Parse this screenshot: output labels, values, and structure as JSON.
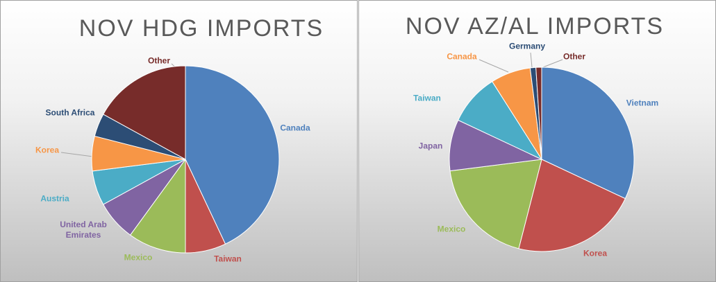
{
  "chart_data": [
    {
      "type": "pie",
      "title": "NOV HDG IMPORTS",
      "categories": [
        "Canada",
        "Taiwan",
        "Mexico",
        "United Arab Emirates",
        "Austria",
        "Korea",
        "South Africa",
        "Other"
      ],
      "values": [
        43,
        7,
        10,
        7,
        6,
        6,
        4,
        17
      ],
      "colors": [
        "#4f81bd",
        "#c0504d",
        "#9bbb59",
        "#8064a2",
        "#4bacc6",
        "#f79646",
        "#2c4d75",
        "#772c2a"
      ]
    },
    {
      "type": "pie",
      "title": "NOV AZ/AL IMPORTS",
      "categories": [
        "Vietnam",
        "Korea",
        "Mexico",
        "Japan",
        "Taiwan",
        "Canada",
        "Germany",
        "Other"
      ],
      "values": [
        32,
        22,
        19,
        9,
        9,
        7,
        1,
        1
      ],
      "colors": [
        "#4f81bd",
        "#c0504d",
        "#9bbb59",
        "#8064a2",
        "#4bacc6",
        "#f79646",
        "#2c4d75",
        "#772c2a"
      ]
    }
  ]
}
